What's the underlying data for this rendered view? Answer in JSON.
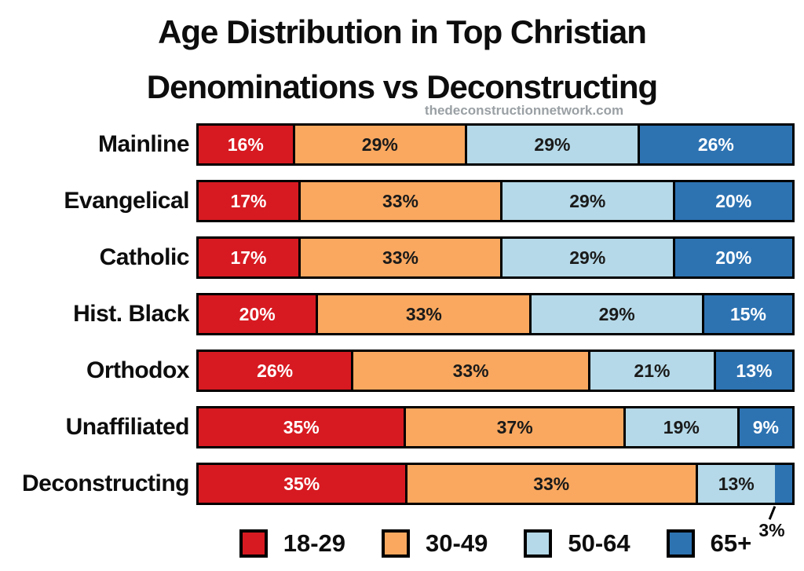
{
  "header": {
    "title_line1": "Age Distribution in Top Christian",
    "title_line2": "Denominations vs Deconstructing",
    "watermark": "thedeconstructionnetwork.com"
  },
  "chart_data": {
    "type": "stacked-bar-horizontal",
    "title": "Age Distribution in Top Christian Denominations vs Deconstructing",
    "unit": "%",
    "xlim": [
      0,
      100
    ],
    "grid": false,
    "categories": [
      "Mainline",
      "Evangelical",
      "Catholic",
      "Hist. Black",
      "Orthodox",
      "Unaffiliated",
      "Deconstructing"
    ],
    "series": [
      {
        "name": "18-29",
        "color": "#d71a21",
        "text_color": "#ffffff",
        "values": [
          16,
          17,
          17,
          20,
          26,
          35,
          35
        ]
      },
      {
        "name": "30-49",
        "color": "#faa85f",
        "text_color": "#1a1a1a",
        "values": [
          29,
          33,
          33,
          33,
          33,
          37,
          33
        ]
      },
      {
        "name": "50-64",
        "color": "#b5d9e8",
        "text_color": "#1a1a1a",
        "values": [
          29,
          29,
          29,
          29,
          21,
          19,
          13
        ]
      },
      {
        "name": "65+",
        "color": "#2d73b2",
        "text_color": "#ffffff",
        "values": [
          26,
          20,
          20,
          15,
          13,
          9,
          3
        ]
      }
    ],
    "data_labels": "inside, value + %",
    "annotations": [
      {
        "category_index": 6,
        "series_index": 3,
        "label": "3%",
        "placement": "below-bar-with-leader-line"
      }
    ],
    "legend": {
      "position": "bottom",
      "entries": [
        "18-29",
        "30-49",
        "50-64",
        "65+"
      ]
    }
  }
}
